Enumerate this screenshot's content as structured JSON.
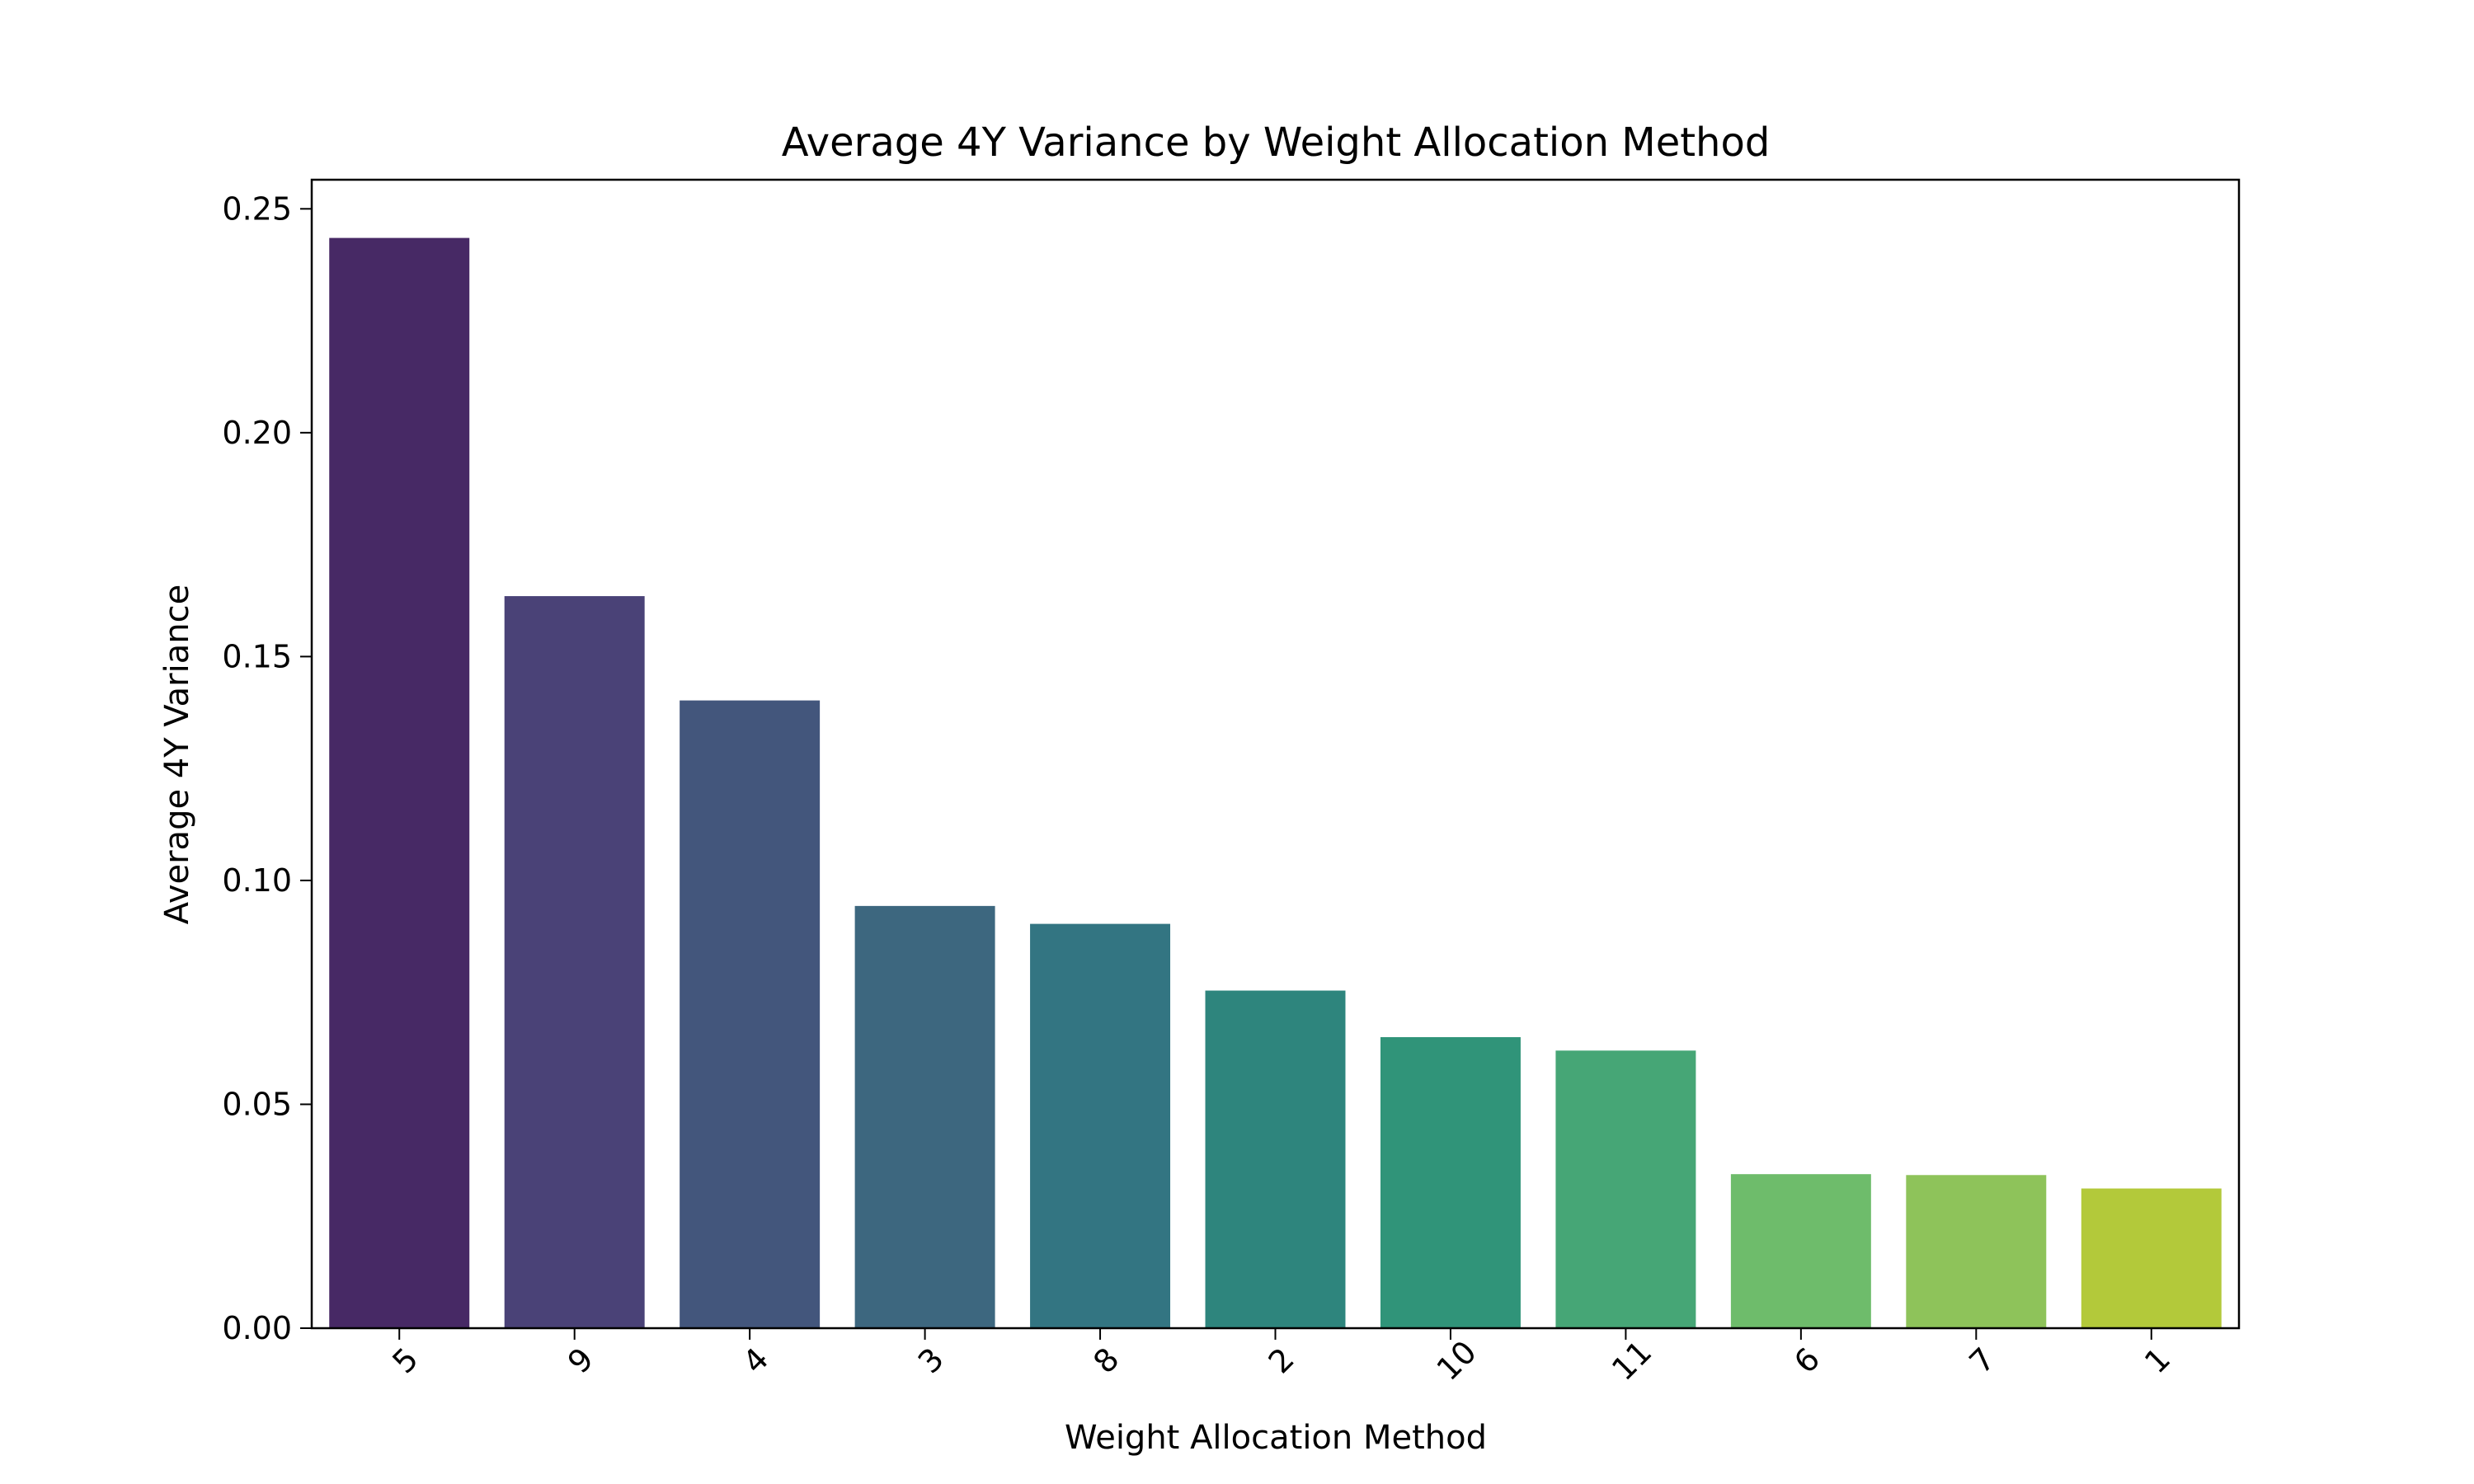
{
  "chart_data": {
    "type": "bar",
    "title": "Average 4Y Variance by Weight Allocation Method",
    "xlabel": "Weight Allocation Method",
    "ylabel": "Average 4Y Variance",
    "categories": [
      "5",
      "9",
      "4",
      "3",
      "8",
      "2",
      "10",
      "11",
      "6",
      "7",
      "1"
    ],
    "values": [
      0.2435,
      0.1635,
      0.1402,
      0.0943,
      0.0903,
      0.0754,
      0.065,
      0.062,
      0.0344,
      0.0342,
      0.0312
    ],
    "colors": [
      "#472965",
      "#4A4277",
      "#43567C",
      "#3D677F",
      "#337582",
      "#2E857D",
      "#309479",
      "#46A676",
      "#6EBC6B",
      "#8EC35A",
      "#B3C93A"
    ],
    "ylim": [
      0,
      0.2565
    ],
    "yticks": [
      0.0,
      0.05,
      0.1,
      0.15,
      0.2,
      0.25
    ],
    "ytick_labels": [
      "0.00",
      "0.05",
      "0.10",
      "0.15",
      "0.20",
      "0.25"
    ],
    "grid": false,
    "xtick_rotation": 45
  }
}
